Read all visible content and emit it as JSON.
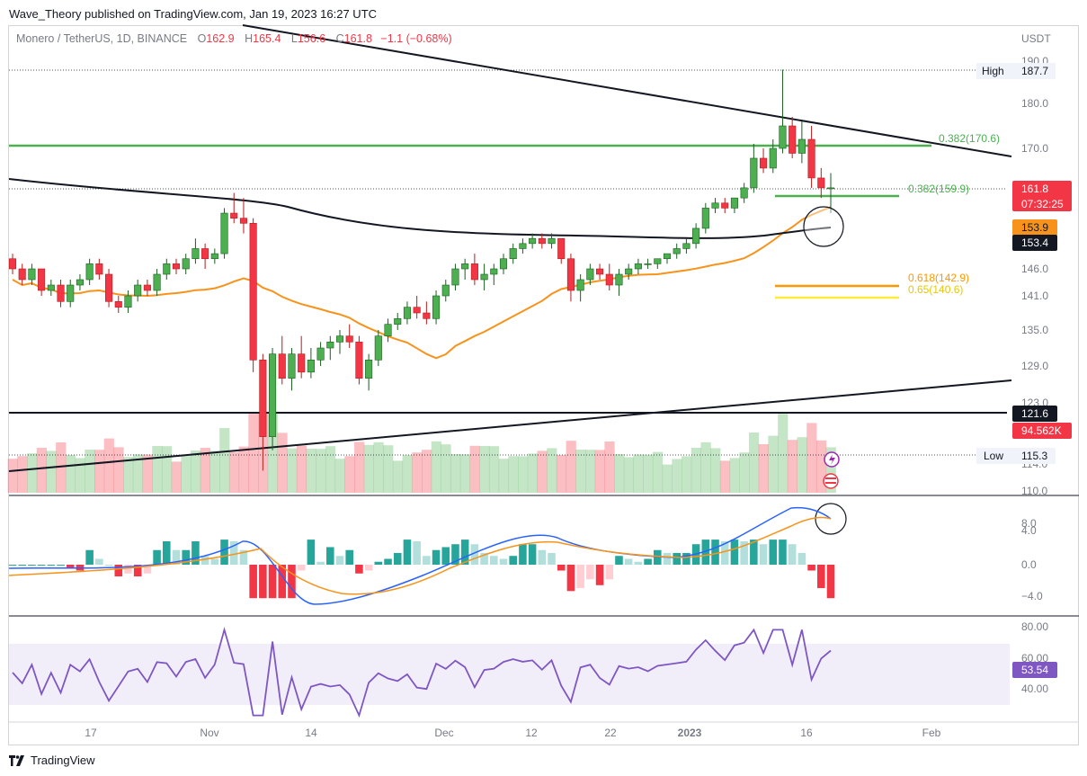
{
  "header": {
    "publisher": "Wave_Theory published on TradingView.com, Jan 19, 2023 16:27 UTC"
  },
  "legend": {
    "symbol": "Monero / TetherUS, 1D, BINANCE",
    "o_label": "O",
    "o": "162.9",
    "h_label": "H",
    "h": "165.4",
    "l_label": "L",
    "l": "156.6",
    "c_label": "C",
    "c": "161.8",
    "change": "−1.1 (−0.68%)"
  },
  "currency": "USDT",
  "footer": {
    "brand": "TradingView"
  },
  "colors": {
    "up": "#089981",
    "down": "#f23645",
    "ema_orange": "#f7931a",
    "fib_green": "#4caf50",
    "fib_orange": "#ff9800",
    "fib_yellow": "#ffeb3b",
    "macd_blue": "#2962ff",
    "rsi_purple": "#7e57c2"
  },
  "chart_data": {
    "type": "candlestick",
    "x_ticks": [
      "17",
      "Nov",
      "14",
      "Dec",
      "12",
      "22",
      "2023",
      "16",
      "Feb"
    ],
    "price_axis": [
      "190.0",
      "180.0",
      "170.0",
      "146.0",
      "141.0",
      "135.0",
      "129.0",
      "123.0",
      "114.0",
      "110.0"
    ],
    "ohlc": [
      [
        148,
        149,
        145,
        146
      ],
      [
        146,
        147,
        143,
        144
      ],
      [
        144,
        147,
        143,
        146
      ],
      [
        146,
        146,
        141,
        142
      ],
      [
        142,
        144,
        141,
        143
      ],
      [
        143,
        144,
        139,
        140
      ],
      [
        140,
        144,
        139,
        143
      ],
      [
        143,
        145,
        142,
        144
      ],
      [
        144,
        148,
        143,
        147
      ],
      [
        147,
        148,
        144,
        145
      ],
      [
        145,
        146,
        139,
        140
      ],
      [
        140,
        141,
        138,
        139
      ],
      [
        139,
        142,
        138,
        141
      ],
      [
        141,
        144,
        140,
        143
      ],
      [
        143,
        144,
        141,
        142
      ],
      [
        142,
        146,
        141,
        145
      ],
      [
        145,
        148,
        144,
        147
      ],
      [
        147,
        148,
        145,
        146
      ],
      [
        146,
        149,
        145,
        148
      ],
      [
        148,
        152,
        147,
        150
      ],
      [
        150,
        151,
        146,
        148
      ],
      [
        148,
        150,
        147,
        149
      ],
      [
        149,
        158,
        148,
        157
      ],
      [
        157,
        161,
        155,
        156
      ],
      [
        156,
        160,
        153,
        155
      ],
      [
        155,
        156,
        128,
        130
      ],
      [
        130,
        131,
        113,
        118
      ],
      [
        118,
        132,
        116,
        131
      ],
      [
        131,
        134,
        126,
        127
      ],
      [
        127,
        132,
        125,
        131
      ],
      [
        131,
        134,
        127,
        128
      ],
      [
        128,
        132,
        127,
        130
      ],
      [
        130,
        133,
        129,
        132
      ],
      [
        132,
        134,
        130,
        133
      ],
      [
        133,
        135,
        131,
        134
      ],
      [
        134,
        136,
        132,
        133
      ],
      [
        133,
        134,
        126,
        127
      ],
      [
        127,
        131,
        125,
        130
      ],
      [
        130,
        135,
        129,
        134
      ],
      [
        134,
        137,
        133,
        136
      ],
      [
        136,
        138,
        135,
        137
      ],
      [
        137,
        140,
        136,
        139
      ],
      [
        139,
        141,
        137,
        138
      ],
      [
        138,
        140,
        136,
        137
      ],
      [
        137,
        142,
        136,
        141
      ],
      [
        141,
        144,
        140,
        143
      ],
      [
        143,
        147,
        142,
        146
      ],
      [
        146,
        148,
        144,
        147
      ],
      [
        147,
        149,
        143,
        144
      ],
      [
        144,
        147,
        142,
        145
      ],
      [
        145,
        147,
        143,
        146
      ],
      [
        146,
        149,
        145,
        148
      ],
      [
        148,
        151,
        147,
        150
      ],
      [
        150,
        152,
        149,
        151
      ],
      [
        151,
        153,
        150,
        152
      ],
      [
        152,
        153,
        150,
        151
      ],
      [
        151,
        153,
        150,
        152
      ],
      [
        152,
        152,
        147,
        148
      ],
      [
        148,
        149,
        140,
        142
      ],
      [
        142,
        145,
        140,
        144
      ],
      [
        144,
        147,
        143,
        146
      ],
      [
        146,
        147,
        144,
        145
      ],
      [
        145,
        147,
        142,
        143
      ],
      [
        143,
        146,
        141,
        145
      ],
      [
        145,
        147,
        144,
        146
      ],
      [
        146,
        148,
        145,
        147
      ],
      [
        147,
        148,
        146,
        147
      ],
      [
        147,
        148,
        146,
        148
      ],
      [
        148,
        149,
        147,
        149
      ],
      [
        149,
        151,
        148,
        150
      ],
      [
        150,
        152,
        149,
        151
      ],
      [
        151,
        155,
        150,
        154
      ],
      [
        154,
        159,
        153,
        158
      ],
      [
        158,
        160,
        157,
        159
      ],
      [
        159,
        160,
        157,
        158
      ],
      [
        158,
        160,
        157,
        160
      ],
      [
        160,
        163,
        159,
        162
      ],
      [
        162,
        171,
        161,
        168
      ],
      [
        168,
        170,
        165,
        166
      ],
      [
        166,
        172,
        165,
        170
      ],
      [
        170,
        188,
        169,
        175
      ],
      [
        175,
        177,
        168,
        169
      ],
      [
        169,
        176,
        167,
        172
      ],
      [
        172,
        175,
        162,
        164
      ],
      [
        164,
        166,
        160,
        162
      ],
      [
        162,
        165,
        157,
        162
      ]
    ],
    "volume_axis_label": "94.562K",
    "ma_200_label": "153.4",
    "ema_50_label": "153.9",
    "current_price": "161.8",
    "countdown": "07:32:25",
    "support_label": "121.6",
    "high": {
      "label": "High",
      "value": "187.7"
    },
    "low": {
      "label": "Low",
      "value": "115.3"
    },
    "fib_levels": [
      {
        "label": "0.382(170.6)",
        "value": 170.6
      },
      {
        "label": "0.382(159.9)",
        "value": 159.9
      },
      {
        "label": "0.618(142.9)",
        "value": 142.9
      },
      {
        "label": "0.65(140.6)",
        "value": 140.6
      }
    ],
    "macd_axis": [
      "8.0",
      "4.0",
      "0.0",
      "−4.0"
    ],
    "rsi_axis": [
      "80.00",
      "60.00",
      "40.00"
    ],
    "rsi_value": "53.54"
  }
}
